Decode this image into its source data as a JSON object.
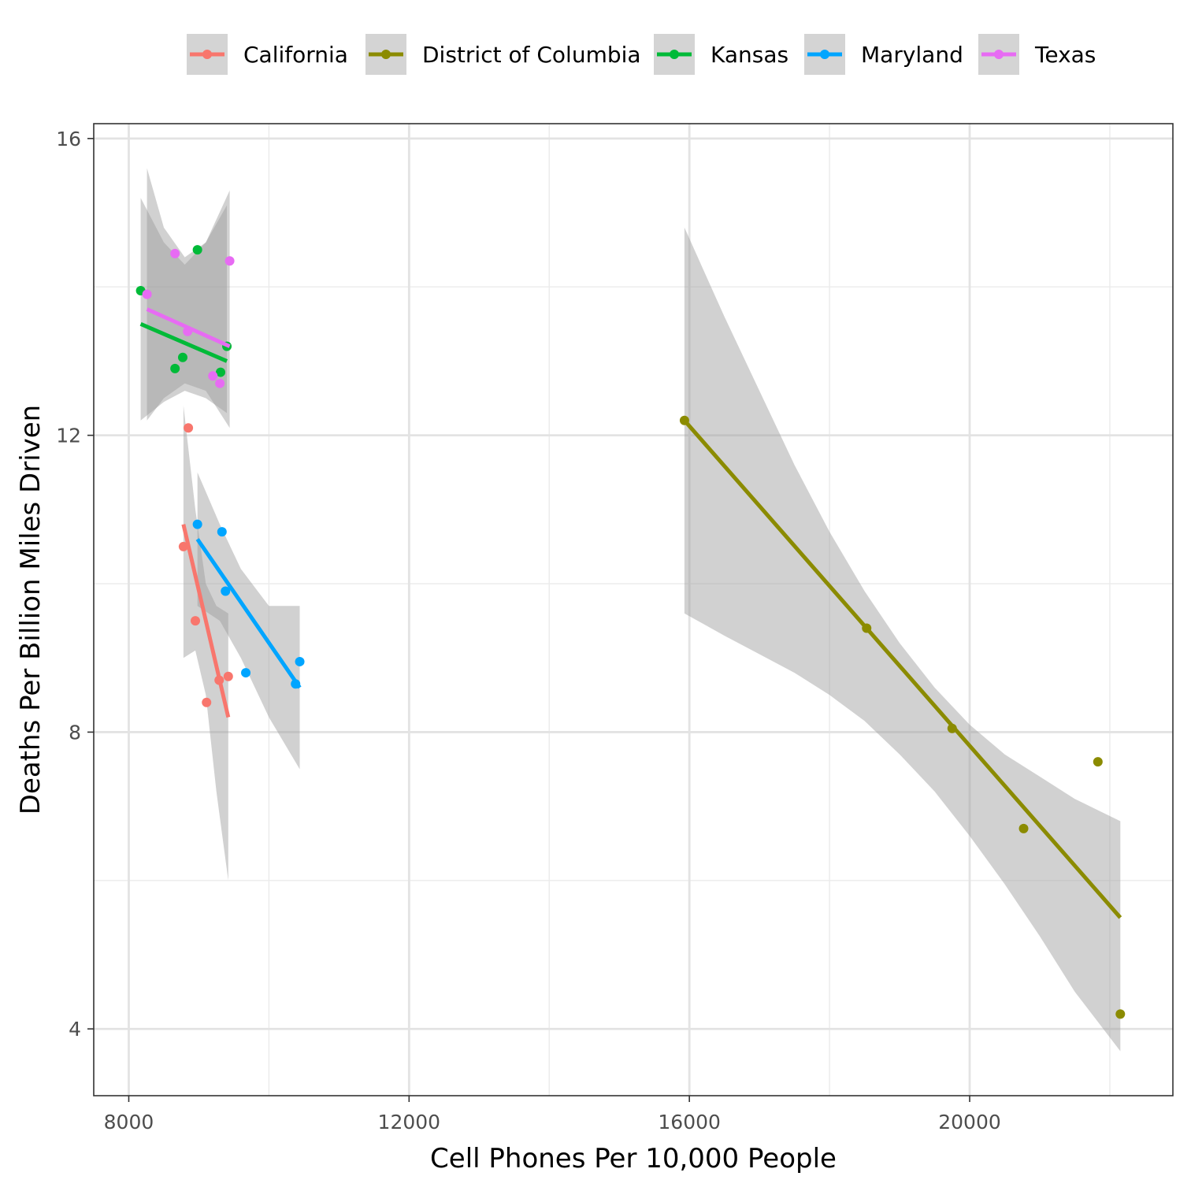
{
  "chart_data": {
    "type": "scatter",
    "title": "",
    "xlabel": "Cell Phones Per 10,000 People",
    "ylabel": "Deaths Per Billion Miles Driven",
    "xlim": [
      7500,
      22900
    ],
    "ylim": [
      3.1,
      16.2
    ],
    "x_ticks": [
      8000,
      12000,
      16000,
      20000
    ],
    "y_ticks": [
      4,
      8,
      12,
      16
    ],
    "grid": true,
    "legend_position": "top",
    "band_color": "#999999",
    "series": [
      {
        "name": "California",
        "color": "#F8766D",
        "points": [
          [
            8850,
            12.1
          ],
          [
            8780,
            10.5
          ],
          [
            8950,
            9.5
          ],
          [
            9290,
            8.7
          ],
          [
            9420,
            8.75
          ],
          [
            9110,
            8.4
          ]
        ],
        "fit": [
          [
            8780,
            10.8
          ],
          [
            9420,
            8.2
          ]
        ],
        "band": [
          [
            8780,
            12.4,
            9.0
          ],
          [
            8950,
            11.0,
            9.1
          ],
          [
            9100,
            10.0,
            8.5
          ],
          [
            9250,
            9.7,
            7.2
          ],
          [
            9420,
            9.6,
            6.0
          ]
        ]
      },
      {
        "name": "District of Columbia",
        "color": "#8B8B00",
        "points": [
          [
            15930,
            12.2
          ],
          [
            18530,
            9.4
          ],
          [
            19750,
            8.05
          ],
          [
            20770,
            6.7
          ],
          [
            21830,
            7.6
          ],
          [
            22150,
            4.2
          ]
        ],
        "fit": [
          [
            15930,
            12.2
          ],
          [
            22150,
            5.5
          ]
        ],
        "band": [
          [
            15930,
            14.8,
            9.6
          ],
          [
            16500,
            13.6,
            9.3
          ],
          [
            17000,
            12.6,
            9.05
          ],
          [
            17500,
            11.6,
            8.8
          ],
          [
            18000,
            10.7,
            8.5
          ],
          [
            18500,
            9.9,
            8.15
          ],
          [
            19000,
            9.2,
            7.7
          ],
          [
            19500,
            8.6,
            7.2
          ],
          [
            20000,
            8.1,
            6.6
          ],
          [
            20500,
            7.7,
            5.95
          ],
          [
            21000,
            7.4,
            5.25
          ],
          [
            21500,
            7.1,
            4.5
          ],
          [
            22150,
            6.8,
            3.7
          ]
        ]
      },
      {
        "name": "Kansas",
        "color": "#00BA38",
        "points": [
          [
            8170,
            13.95
          ],
          [
            8980,
            14.5
          ],
          [
            8770,
            13.05
          ],
          [
            8660,
            12.9
          ],
          [
            9310,
            12.85
          ],
          [
            9400,
            13.2
          ]
        ],
        "fit": [
          [
            8170,
            13.5
          ],
          [
            9400,
            13.0
          ]
        ],
        "band": [
          [
            8170,
            15.2,
            12.2
          ],
          [
            8500,
            14.6,
            12.45
          ],
          [
            8800,
            14.3,
            12.6
          ],
          [
            9100,
            14.6,
            12.5
          ],
          [
            9400,
            15.1,
            12.3
          ]
        ]
      },
      {
        "name": "Maryland",
        "color": "#00A5FF",
        "points": [
          [
            8980,
            10.8
          ],
          [
            9330,
            10.7
          ],
          [
            9380,
            9.9
          ],
          [
            9670,
            8.8
          ],
          [
            10380,
            8.65
          ],
          [
            10440,
            8.95
          ]
        ],
        "fit": [
          [
            8980,
            10.6
          ],
          [
            10440,
            8.6
          ]
        ],
        "band": [
          [
            8980,
            11.5,
            9.7
          ],
          [
            9300,
            10.8,
            9.5
          ],
          [
            9600,
            10.2,
            9.0
          ],
          [
            10000,
            9.7,
            8.2
          ],
          [
            10440,
            9.7,
            7.5
          ]
        ]
      },
      {
        "name": "Texas",
        "color": "#E76BF3",
        "points": [
          [
            8660,
            14.45
          ],
          [
            9440,
            14.35
          ],
          [
            8260,
            13.9
          ],
          [
            8840,
            13.4
          ],
          [
            9200,
            12.8
          ],
          [
            9300,
            12.7
          ]
        ],
        "fit": [
          [
            8260,
            13.7
          ],
          [
            9440,
            13.2
          ]
        ],
        "band": [
          [
            8260,
            15.6,
            12.2
          ],
          [
            8500,
            14.8,
            12.5
          ],
          [
            8800,
            14.4,
            12.7
          ],
          [
            9100,
            14.6,
            12.6
          ],
          [
            9440,
            15.3,
            12.1
          ]
        ]
      }
    ]
  }
}
